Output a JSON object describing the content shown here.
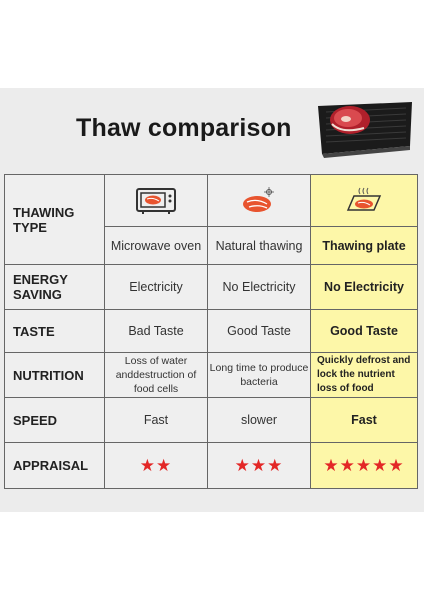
{
  "title": "Thaw comparison",
  "columns": [
    "Microwave oven",
    "Natural thawing",
    "Thawing plate"
  ],
  "row_headers": {
    "thawing_type": "THAWING TYPE",
    "energy": "ENERGY SAVING",
    "taste": "TASTE",
    "nutrition": "NUTRITION",
    "speed": "SPEED",
    "appraisal": "APPRAISAL"
  },
  "energy": [
    "Electricity",
    "No Electricity",
    "No Electricity"
  ],
  "taste": [
    "Bad Taste",
    "Good Taste",
    "Good Taste"
  ],
  "nutrition": [
    "Loss of water anddestruction of food cells",
    "Long time to produce bacteria",
    "Quickly defrost and lock the nutrient loss of food"
  ],
  "speed": [
    "Fast",
    "slower",
    "Fast"
  ],
  "appraisal": [
    "★★",
    "★★★",
    "★★★★★"
  ],
  "appraisal_counts": [
    2,
    3,
    5
  ],
  "icons": [
    "microwave-icon",
    "meat-thawing-icon",
    "thawing-plate-icon"
  ],
  "colors": {
    "highlight": "#fdf7a8",
    "star": "#e32726",
    "meat": "#e8542f",
    "board": "#1c1c1c"
  }
}
